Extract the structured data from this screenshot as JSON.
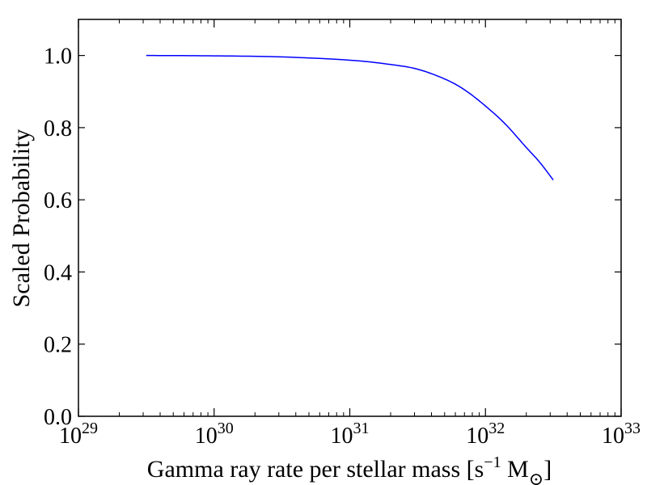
{
  "chart_data": {
    "type": "line",
    "xlabel": "Gamma ray rate per stellar mass [s",
    "xlabel_sup": "−1",
    "xlabel_unit": " M",
    "xlabel_sub": "⊙",
    "xlabel_close": "]",
    "ylabel": "Scaled Probability",
    "xscale": "log",
    "xlim": [
      1e+29,
      1e+33
    ],
    "ylim": [
      0.0,
      1.1
    ],
    "x_ticks": [
      {
        "base": "10",
        "exp": "29",
        "value": 1e+29
      },
      {
        "base": "10",
        "exp": "30",
        "value": 1e+30
      },
      {
        "base": "10",
        "exp": "31",
        "value": 1e+31
      },
      {
        "base": "10",
        "exp": "32",
        "value": 1e+32
      },
      {
        "base": "10",
        "exp": "33",
        "value": 1e+33
      }
    ],
    "y_ticks": [
      {
        "label": "0.0",
        "value": 0.0
      },
      {
        "label": "0.2",
        "value": 0.2
      },
      {
        "label": "0.4",
        "value": 0.4
      },
      {
        "label": "0.6",
        "value": 0.6
      },
      {
        "label": "0.8",
        "value": 0.8
      },
      {
        "label": "1.0",
        "value": 1.0
      }
    ],
    "line_color": "#0000ff",
    "grid": false,
    "series": [
      {
        "x": [
          3.16e+29,
          1e+30,
          3.16e+30,
          1e+31,
          2e+31,
          3.16e+31,
          5e+31,
          7e+31,
          1e+32,
          1.4e+32,
          2e+32,
          2.5e+32,
          3.16e+32
        ],
        "y": [
          1.0,
          0.999,
          0.996,
          0.987,
          0.975,
          0.962,
          0.935,
          0.905,
          0.86,
          0.81,
          0.745,
          0.705,
          0.655
        ]
      }
    ]
  }
}
